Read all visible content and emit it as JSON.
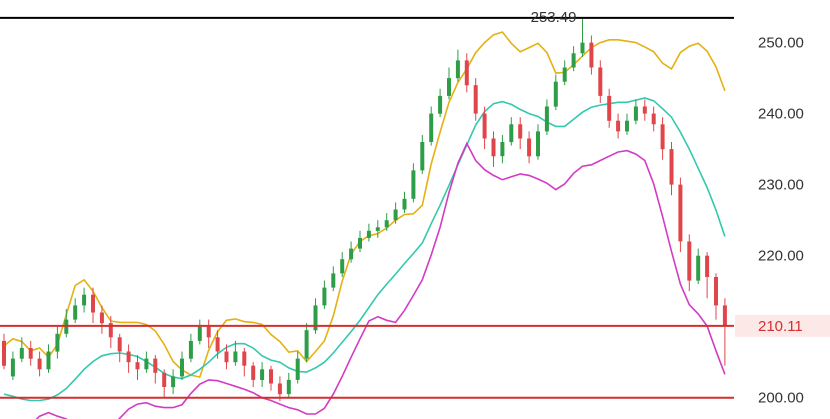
{
  "chart_data": {
    "type": "candlestick",
    "ylim": [
      197,
      256
    ],
    "y_ticks": [
      "250.00",
      "240.00",
      "230.00",
      "220.00",
      "200.00"
    ],
    "y_tick_values": [
      250,
      240,
      230,
      220,
      200
    ],
    "annotation_high": "253.49",
    "high_value": 253.49,
    "current_price_label": "210.11",
    "current_price": 210.11,
    "horizontal_lines": [
      {
        "value": 253.49,
        "color": "#000000"
      },
      {
        "value": 210.11,
        "color": "#d32f2f"
      },
      {
        "value": 200.0,
        "color": "#d32f2f"
      }
    ],
    "colors": {
      "up": "#2e9d48",
      "down": "#e0454a",
      "upper_band": "#e5b112",
      "middle_band": "#33c9ad",
      "lower_band": "#d23bc3",
      "price_tag_bg": "#fde8e8",
      "price_tag_text": "#d32f2f"
    },
    "upper_band": [
      [
        0,
        207.3
      ],
      [
        1,
        208.3
      ],
      [
        2,
        207.9
      ],
      [
        3,
        206.6
      ],
      [
        4,
        207.0
      ],
      [
        5,
        205.7
      ],
      [
        6,
        207.5
      ],
      [
        7,
        211.7
      ],
      [
        8,
        215.8
      ],
      [
        9,
        216.6
      ],
      [
        10,
        215.0
      ],
      [
        11,
        212.7
      ],
      [
        12,
        210.8
      ],
      [
        13,
        210.6
      ],
      [
        14,
        210.6
      ],
      [
        15,
        210.6
      ],
      [
        16,
        210.3
      ],
      [
        17,
        209.4
      ],
      [
        18,
        207.5
      ],
      [
        19,
        205.1
      ],
      [
        20,
        203.9
      ],
      [
        21,
        203.2
      ],
      [
        22,
        202.9
      ],
      [
        23,
        206.7
      ],
      [
        24,
        209.3
      ],
      [
        25,
        210.9
      ],
      [
        26,
        211.1
      ],
      [
        27,
        210.7
      ],
      [
        28,
        210.6
      ],
      [
        29,
        210.3
      ],
      [
        30,
        208.9
      ],
      [
        31,
        207.9
      ],
      [
        32,
        206.4
      ],
      [
        33,
        206.6
      ],
      [
        34,
        205.1
      ],
      [
        35,
        206.5
      ],
      [
        36,
        208.0
      ],
      [
        37,
        211.5
      ],
      [
        38,
        216.4
      ],
      [
        39,
        220.2
      ],
      [
        40,
        222.0
      ],
      [
        41,
        222.8
      ],
      [
        42,
        223.1
      ],
      [
        43,
        223.9
      ],
      [
        44,
        225.0
      ],
      [
        45,
        225.8
      ],
      [
        46,
        225.9
      ],
      [
        47,
        227.1
      ],
      [
        48,
        232.9
      ],
      [
        49,
        237.4
      ],
      [
        50,
        241.6
      ],
      [
        51,
        244.4
      ],
      [
        52,
        246.3
      ],
      [
        53,
        248.6
      ],
      [
        54,
        250.0
      ],
      [
        55,
        251.1
      ],
      [
        56,
        251.5
      ],
      [
        57,
        249.9
      ],
      [
        58,
        248.7
      ],
      [
        59,
        249.3
      ],
      [
        60,
        249.9
      ],
      [
        61,
        248.6
      ],
      [
        62,
        245.7
      ],
      [
        63,
        245.8
      ],
      [
        64,
        246.9
      ],
      [
        65,
        248.1
      ],
      [
        66,
        249.3
      ],
      [
        67,
        250.0
      ],
      [
        68,
        250.4
      ],
      [
        69,
        250.4
      ],
      [
        70,
        250.2
      ],
      [
        71,
        250.0
      ],
      [
        72,
        249.4
      ],
      [
        73,
        248.7
      ],
      [
        74,
        247.1
      ],
      [
        75,
        246.3
      ],
      [
        76,
        248.6
      ],
      [
        77,
        249.5
      ],
      [
        78,
        249.9
      ],
      [
        79,
        248.8
      ],
      [
        80,
        246.6
      ],
      [
        81,
        243.2
      ]
    ],
    "middle_band": [
      [
        0,
        200.5
      ],
      [
        1,
        200.2
      ],
      [
        2,
        199.8
      ],
      [
        3,
        199.6
      ],
      [
        4,
        199.6
      ],
      [
        5,
        199.8
      ],
      [
        6,
        200.4
      ],
      [
        7,
        201.3
      ],
      [
        8,
        202.6
      ],
      [
        9,
        204.0
      ],
      [
        10,
        205.1
      ],
      [
        11,
        205.9
      ],
      [
        12,
        206.2
      ],
      [
        13,
        206.3
      ],
      [
        14,
        206.1
      ],
      [
        15,
        205.8
      ],
      [
        16,
        205.1
      ],
      [
        17,
        204.3
      ],
      [
        18,
        203.4
      ],
      [
        19,
        202.9
      ],
      [
        20,
        202.7
      ],
      [
        21,
        203.2
      ],
      [
        22,
        204.0
      ],
      [
        23,
        205.0
      ],
      [
        24,
        206.2
      ],
      [
        25,
        207.1
      ],
      [
        26,
        207.6
      ],
      [
        27,
        207.6
      ],
      [
        28,
        207.0
      ],
      [
        29,
        205.9
      ],
      [
        30,
        205.3
      ],
      [
        31,
        205.0
      ],
      [
        32,
        204.2
      ],
      [
        33,
        203.7
      ],
      [
        34,
        203.6
      ],
      [
        35,
        204.2
      ],
      [
        36,
        205.0
      ],
      [
        37,
        206.3
      ],
      [
        38,
        207.8
      ],
      [
        39,
        209.3
      ],
      [
        40,
        210.9
      ],
      [
        41,
        212.7
      ],
      [
        42,
        214.5
      ],
      [
        43,
        216.0
      ],
      [
        44,
        217.4
      ],
      [
        45,
        218.9
      ],
      [
        46,
        220.3
      ],
      [
        47,
        221.8
      ],
      [
        48,
        224.5
      ],
      [
        49,
        227.1
      ],
      [
        50,
        229.9
      ],
      [
        51,
        232.8
      ],
      [
        52,
        235.6
      ],
      [
        53,
        238.4
      ],
      [
        54,
        240.3
      ],
      [
        55,
        241.4
      ],
      [
        56,
        241.7
      ],
      [
        57,
        241.3
      ],
      [
        58,
        240.6
      ],
      [
        59,
        240.0
      ],
      [
        60,
        239.6
      ],
      [
        61,
        238.8
      ],
      [
        62,
        238.2
      ],
      [
        63,
        238.2
      ],
      [
        64,
        239.2
      ],
      [
        65,
        240.2
      ],
      [
        66,
        240.9
      ],
      [
        67,
        241.2
      ],
      [
        68,
        241.4
      ],
      [
        69,
        241.6
      ],
      [
        70,
        241.6
      ],
      [
        71,
        241.9
      ],
      [
        72,
        242.2
      ],
      [
        73,
        241.8
      ],
      [
        74,
        240.7
      ],
      [
        75,
        239.5
      ],
      [
        76,
        237.4
      ],
      [
        77,
        235.0
      ],
      [
        78,
        232.3
      ],
      [
        79,
        229.6
      ],
      [
        80,
        226.4
      ],
      [
        81,
        222.7
      ]
    ],
    "lower_band": [
      [
        1,
        194.7
      ],
      [
        2,
        195.3
      ],
      [
        3,
        196.2
      ],
      [
        4,
        197.4
      ],
      [
        5,
        197.9
      ],
      [
        6,
        197.4
      ],
      [
        7,
        197.0
      ],
      [
        8,
        196.2
      ],
      [
        9,
        195.4
      ],
      [
        10,
        194.9
      ],
      [
        11,
        195.4
      ],
      [
        12,
        195.9
      ],
      [
        13,
        197.1
      ],
      [
        14,
        198.4
      ],
      [
        15,
        199.1
      ],
      [
        16,
        199.3
      ],
      [
        17,
        198.8
      ],
      [
        18,
        198.6
      ],
      [
        19,
        198.6
      ],
      [
        20,
        199.0
      ],
      [
        21,
        200.6
      ],
      [
        22,
        201.9
      ],
      [
        23,
        202.5
      ],
      [
        24,
        202.4
      ],
      [
        25,
        202.0
      ],
      [
        26,
        201.6
      ],
      [
        27,
        201.2
      ],
      [
        28,
        200.7
      ],
      [
        29,
        200.0
      ],
      [
        30,
        199.6
      ],
      [
        31,
        199.1
      ],
      [
        32,
        198.6
      ],
      [
        33,
        198.3
      ],
      [
        34,
        197.7
      ],
      [
        35,
        197.7
      ],
      [
        36,
        198.5
      ],
      [
        37,
        200.5
      ],
      [
        38,
        203.0
      ],
      [
        39,
        205.7
      ],
      [
        40,
        208.3
      ],
      [
        41,
        210.8
      ],
      [
        42,
        211.4
      ],
      [
        43,
        210.9
      ],
      [
        44,
        210.6
      ],
      [
        45,
        212.3
      ],
      [
        46,
        214.4
      ],
      [
        47,
        216.6
      ],
      [
        48,
        220.1
      ],
      [
        49,
        224.0
      ],
      [
        50,
        228.9
      ],
      [
        51,
        233.0
      ],
      [
        52,
        235.8
      ],
      [
        53,
        233.4
      ],
      [
        54,
        232.1
      ],
      [
        55,
        231.3
      ],
      [
        56,
        230.7
      ],
      [
        57,
        231.1
      ],
      [
        58,
        231.5
      ],
      [
        59,
        231.3
      ],
      [
        60,
        230.8
      ],
      [
        61,
        230.2
      ],
      [
        62,
        229.3
      ],
      [
        63,
        230.1
      ],
      [
        64,
        231.6
      ],
      [
        65,
        232.6
      ],
      [
        66,
        232.8
      ],
      [
        67,
        233.4
      ],
      [
        68,
        234.0
      ],
      [
        69,
        234.6
      ],
      [
        70,
        234.8
      ],
      [
        71,
        234.3
      ],
      [
        72,
        233.4
      ],
      [
        73,
        230.1
      ],
      [
        74,
        225.5
      ],
      [
        75,
        220.6
      ],
      [
        76,
        216.0
      ],
      [
        77,
        213.1
      ],
      [
        78,
        211.8
      ],
      [
        79,
        210.1
      ],
      [
        80,
        206.6
      ],
      [
        81,
        203.3
      ]
    ],
    "candles": [
      [
        0,
        208.0,
        204.5,
        209.0,
        204.0
      ],
      [
        1,
        203.0,
        205.5,
        206.5,
        202.5
      ],
      [
        2,
        205.5,
        207.0,
        208.5,
        205.0
      ],
      [
        3,
        207.0,
        205.5,
        208.0,
        204.5
      ],
      [
        4,
        205.5,
        204.0,
        206.5,
        203.0
      ],
      [
        5,
        204.0,
        206.5,
        207.5,
        203.5
      ],
      [
        6,
        206.5,
        209.0,
        210.0,
        205.5
      ],
      [
        7,
        209.0,
        211.0,
        212.5,
        208.5
      ],
      [
        8,
        211.0,
        213.0,
        214.0,
        210.5
      ],
      [
        9,
        213.0,
        214.5,
        215.5,
        212.0
      ],
      [
        10,
        214.5,
        212.0,
        215.5,
        210.5
      ],
      [
        11,
        212.0,
        210.5,
        213.0,
        209.0
      ],
      [
        12,
        210.5,
        208.5,
        211.5,
        207.0
      ],
      [
        13,
        208.5,
        206.5,
        209.0,
        205.0
      ],
      [
        14,
        206.5,
        205.0,
        207.5,
        203.5
      ],
      [
        15,
        205.0,
        204.0,
        206.0,
        202.5
      ],
      [
        16,
        204.0,
        205.5,
        206.5,
        203.5
      ],
      [
        17,
        205.5,
        203.5,
        206.0,
        202.0
      ],
      [
        18,
        203.5,
        201.5,
        204.0,
        200.0
      ],
      [
        19,
        201.5,
        203.0,
        204.0,
        200.5
      ],
      [
        20,
        203.0,
        205.5,
        206.5,
        202.5
      ],
      [
        21,
        205.5,
        208.0,
        209.0,
        205.0
      ],
      [
        22,
        208.0,
        210.0,
        211.0,
        207.5
      ],
      [
        23,
        210.0,
        208.5,
        211.0,
        207.0
      ],
      [
        24,
        208.5,
        206.5,
        209.5,
        205.5
      ],
      [
        25,
        206.5,
        205.0,
        207.5,
        204.0
      ],
      [
        26,
        205.0,
        206.5,
        208.0,
        204.5
      ],
      [
        27,
        206.5,
        204.5,
        207.0,
        203.0
      ],
      [
        28,
        204.5,
        202.5,
        205.0,
        201.5
      ],
      [
        29,
        202.5,
        204.0,
        205.0,
        201.5
      ],
      [
        30,
        204.0,
        202.0,
        204.5,
        201.0
      ],
      [
        31,
        202.0,
        200.5,
        203.0,
        199.5
      ],
      [
        32,
        200.5,
        202.5,
        203.5,
        200.0
      ],
      [
        33,
        202.5,
        205.5,
        206.5,
        202.0
      ],
      [
        34,
        205.5,
        209.5,
        210.5,
        205.0
      ],
      [
        35,
        209.5,
        213.0,
        214.0,
        209.0
      ],
      [
        36,
        213.0,
        215.5,
        216.5,
        212.5
      ],
      [
        37,
        215.5,
        217.5,
        218.5,
        215.0
      ],
      [
        38,
        217.5,
        219.5,
        220.5,
        217.0
      ],
      [
        39,
        219.5,
        221.0,
        222.0,
        219.0
      ],
      [
        40,
        221.0,
        222.5,
        223.5,
        220.5
      ],
      [
        41,
        222.5,
        223.5,
        224.5,
        222.0
      ],
      [
        42,
        223.5,
        224.0,
        225.0,
        222.5
      ],
      [
        43,
        224.0,
        225.0,
        226.0,
        223.5
      ],
      [
        44,
        225.0,
        226.5,
        227.5,
        224.5
      ],
      [
        45,
        226.5,
        228.0,
        229.0,
        226.0
      ],
      [
        46,
        228.0,
        232.0,
        233.0,
        227.5
      ],
      [
        47,
        232.0,
        236.0,
        237.0,
        231.5
      ],
      [
        48,
        236.0,
        240.0,
        241.0,
        235.5
      ],
      [
        49,
        240.0,
        242.5,
        243.5,
        239.5
      ],
      [
        50,
        242.5,
        245.0,
        246.5,
        242.0
      ],
      [
        51,
        245.0,
        247.5,
        249.0,
        244.5
      ],
      [
        52,
        247.5,
        244.0,
        248.5,
        243.0
      ],
      [
        53,
        244.0,
        240.0,
        245.0,
        239.0
      ],
      [
        54,
        240.0,
        236.5,
        241.0,
        235.0
      ],
      [
        55,
        236.5,
        234.0,
        237.5,
        232.5
      ],
      [
        56,
        234.0,
        236.0,
        237.0,
        233.0
      ],
      [
        57,
        236.0,
        238.5,
        239.5,
        235.5
      ],
      [
        58,
        238.5,
        236.5,
        239.5,
        235.0
      ],
      [
        59,
        236.5,
        234.0,
        237.5,
        233.0
      ],
      [
        60,
        234.0,
        237.5,
        238.5,
        233.5
      ],
      [
        61,
        237.5,
        241.0,
        242.0,
        237.0
      ],
      [
        62,
        241.0,
        244.5,
        245.5,
        240.5
      ],
      [
        63,
        244.5,
        246.5,
        247.5,
        244.0
      ],
      [
        64,
        246.5,
        248.5,
        249.5,
        246.0
      ],
      [
        65,
        248.5,
        250.0,
        253.49,
        248.0
      ],
      [
        66,
        250.0,
        246.5,
        251.0,
        245.5
      ],
      [
        67,
        246.5,
        242.5,
        247.5,
        241.5
      ],
      [
        68,
        242.5,
        239.0,
        243.5,
        238.0
      ],
      [
        69,
        239.0,
        237.5,
        240.0,
        236.5
      ],
      [
        70,
        237.5,
        239.0,
        240.0,
        237.0
      ],
      [
        71,
        239.0,
        241.0,
        242.0,
        238.5
      ],
      [
        72,
        241.0,
        240.0,
        242.0,
        239.0
      ],
      [
        73,
        240.0,
        238.5,
        241.0,
        237.5
      ],
      [
        74,
        238.5,
        235.0,
        239.5,
        233.5
      ],
      [
        75,
        235.0,
        230.0,
        236.0,
        228.5
      ],
      [
        76,
        230.0,
        222.0,
        231.0,
        220.5
      ],
      [
        77,
        222.0,
        216.5,
        223.0,
        215.0
      ],
      [
        78,
        216.5,
        220.0,
        221.0,
        216.0
      ],
      [
        79,
        220.0,
        217.0,
        220.5,
        214.0
      ],
      [
        80,
        217.0,
        213.0,
        217.5,
        211.0
      ],
      [
        81,
        213.0,
        210.11,
        214.0,
        204.5
      ]
    ]
  }
}
